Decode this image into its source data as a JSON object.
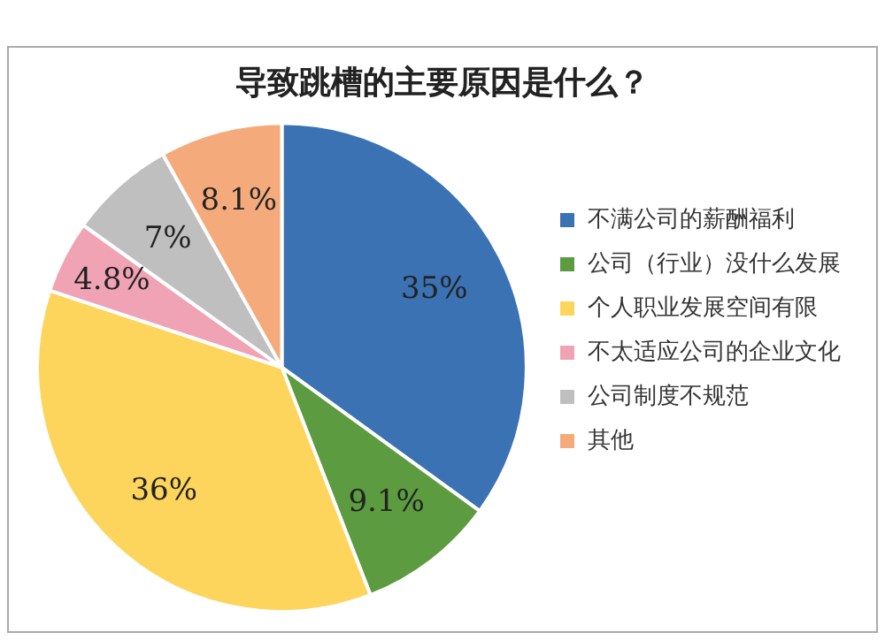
{
  "chart_data": {
    "type": "pie",
    "title": "导致跳槽的主要原因是什么？",
    "categories": [
      "不满公司的薪酬福利",
      "公司（行业）没什么发展",
      "个人职业发展空间有限",
      "不太适应公司的企业文化",
      "公司制度不规范",
      "其他"
    ],
    "values": [
      35,
      9.1,
      36,
      4.8,
      7,
      8.1
    ],
    "value_labels": [
      "35%",
      "9.1%",
      "36%",
      "4.8%",
      "7%",
      "8.1%"
    ],
    "colors": [
      "#3b72b3",
      "#5c9b40",
      "#fdd55c",
      "#f0a3b4",
      "#bfbfbf",
      "#f5aa7c"
    ],
    "legend": "right"
  }
}
